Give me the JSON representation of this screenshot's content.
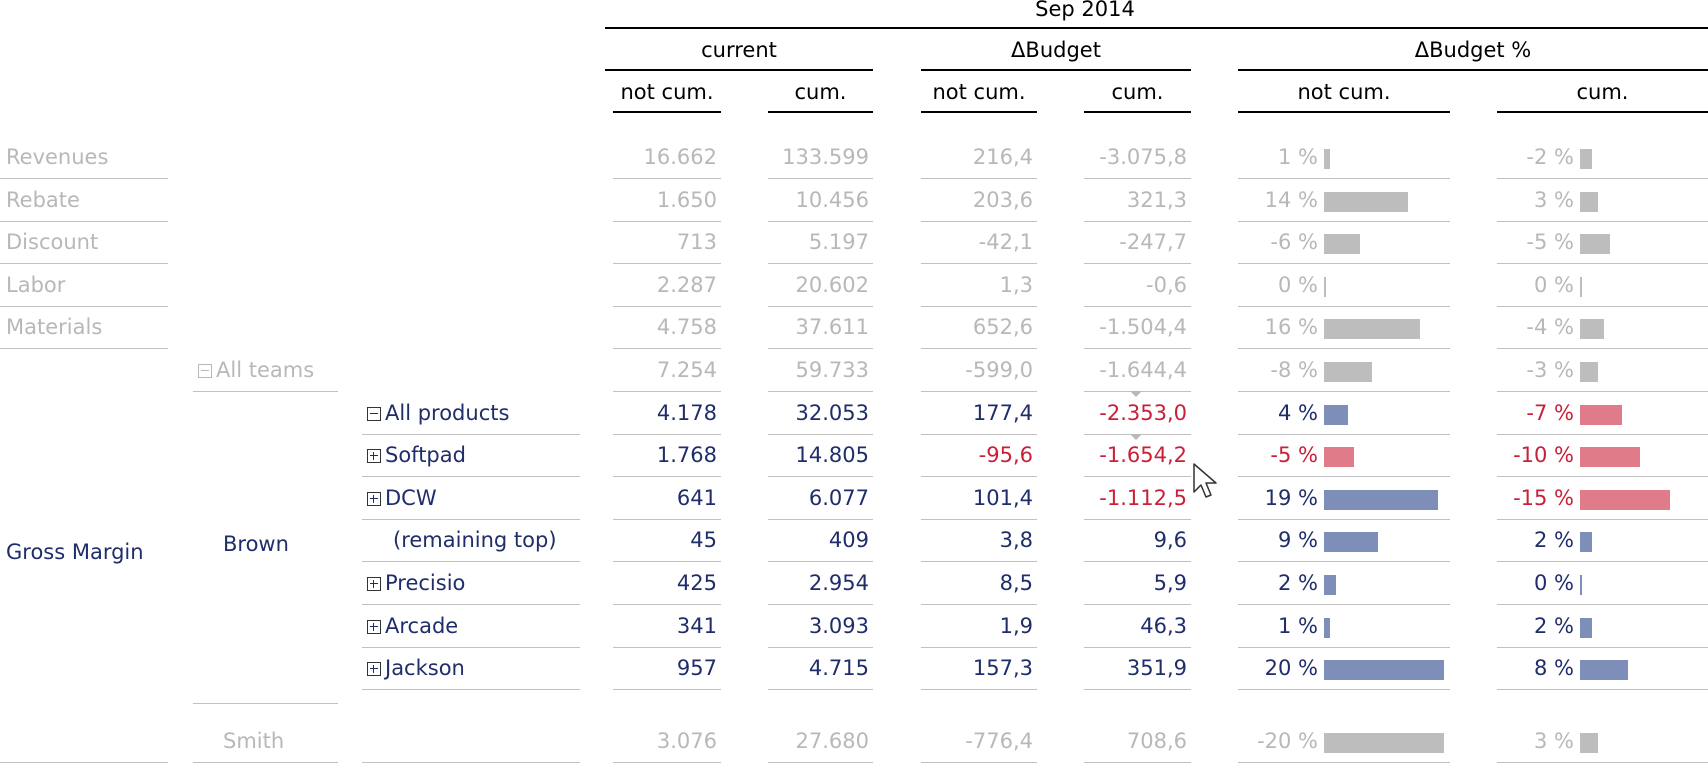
{
  "period": "Sep 2014",
  "groups": [
    "current",
    "ΔBudget",
    "ΔBudget %"
  ],
  "subheaders": [
    "not cum.",
    "cum.",
    "not cum.",
    "cum.",
    "not cum.",
    "cum."
  ],
  "top_rows": [
    {
      "label": "Revenues",
      "c_nc": "16.662",
      "c_c": "133.599",
      "b_nc": "216,4",
      "b_c": "-3.075,8",
      "p_nc": "1 %",
      "p_nc_value": 1,
      "p_c": "-2 %",
      "p_c_value": -2
    },
    {
      "label": "Rebate",
      "c_nc": "1.650",
      "c_c": "10.456",
      "b_nc": "203,6",
      "b_c": "321,3",
      "p_nc": "14 %",
      "p_nc_value": 14,
      "p_c": "3 %",
      "p_c_value": 3
    },
    {
      "label": "Discount",
      "c_nc": "713",
      "c_c": "5.197",
      "b_nc": "-42,1",
      "b_c": "-247,7",
      "p_nc": "-6 %",
      "p_nc_value": -6,
      "p_c": "-5 %",
      "p_c_value": -5
    },
    {
      "label": "Labor",
      "c_nc": "2.287",
      "c_c": "20.602",
      "b_nc": "1,3",
      "b_c": "-0,6",
      "p_nc": "0 %",
      "p_nc_value": 0,
      "p_c": "0 %",
      "p_c_value": 0
    },
    {
      "label": "Materials",
      "c_nc": "4.758",
      "c_c": "37.611",
      "b_nc": "652,6",
      "b_c": "-1.504,4",
      "p_nc": "16 %",
      "p_nc_value": 16,
      "p_c": "-4 %",
      "p_c_value": -4
    }
  ],
  "all_teams": {
    "label": "All teams",
    "c_nc": "7.254",
    "c_c": "59.733",
    "b_nc": "-599,0",
    "b_c": "-1.644,4",
    "p_nc": "-8 %",
    "p_nc_value": -8,
    "p_c": "-3 %",
    "p_c_value": -3
  },
  "gross_margin_label": "Gross Margin",
  "team_label": "Brown",
  "products": [
    {
      "label": "All products",
      "expand": "minus",
      "c_nc": "4.178",
      "c_c": "32.053",
      "b_nc": "177,4",
      "b_c": "-2.353,0",
      "p_nc": "4 %",
      "p_nc_value": 4,
      "p_c": "-7 %",
      "p_c_value": -7
    },
    {
      "label": "Softpad",
      "expand": "plus",
      "c_nc": "1.768",
      "c_c": "14.805",
      "b_nc": "-95,6",
      "b_c": "-1.654,2",
      "p_nc": "-5 %",
      "p_nc_value": -5,
      "p_c": "-10 %",
      "p_c_value": -10
    },
    {
      "label": "DCW",
      "expand": "plus",
      "c_nc": "641",
      "c_c": "6.077",
      "b_nc": "101,4",
      "b_c": "-1.112,5",
      "p_nc": "19 %",
      "p_nc_value": 19,
      "p_c": "-15 %",
      "p_c_value": -15
    },
    {
      "label": "(remaining top)",
      "expand": "none",
      "c_nc": "45",
      "c_c": "409",
      "b_nc": "3,8",
      "b_c": "9,6",
      "p_nc": "9 %",
      "p_nc_value": 9,
      "p_c": "2 %",
      "p_c_value": 2
    },
    {
      "label": "Precisio",
      "expand": "plus",
      "c_nc": "425",
      "c_c": "2.954",
      "b_nc": "8,5",
      "b_c": "5,9",
      "p_nc": "2 %",
      "p_nc_value": 2,
      "p_c": "0 %",
      "p_c_value": 0
    },
    {
      "label": "Arcade",
      "expand": "plus",
      "c_nc": "341",
      "c_c": "3.093",
      "b_nc": "1,9",
      "b_c": "46,3",
      "p_nc": "1 %",
      "p_nc_value": 1,
      "p_c": "2 %",
      "p_c_value": 2
    },
    {
      "label": "Jackson",
      "expand": "plus",
      "c_nc": "957",
      "c_c": "4.715",
      "b_nc": "157,3",
      "b_c": "351,9",
      "p_nc": "20 %",
      "p_nc_value": 20,
      "p_c": "8 %",
      "p_c_value": 8
    }
  ],
  "smith": {
    "label": "Smith",
    "c_nc": "3.076",
    "c_c": "27.680",
    "b_nc": "-776,4",
    "b_c": "708,6",
    "p_nc": "-20 %",
    "p_nc_value": -20,
    "p_c": "3 %",
    "p_c_value": 3
  },
  "colors": {
    "text": "#1f2d6b",
    "negative": "#c9203a",
    "muted": "#b8b8b8",
    "bar_pos": "#7d8fb8",
    "bar_neg": "#e07c8a",
    "bar_muted": "#bdbdbd"
  },
  "icons": {
    "expand": "plus-box-icon",
    "collapse": "minus-box-icon",
    "cursor": "mouse-pointer-icon"
  }
}
